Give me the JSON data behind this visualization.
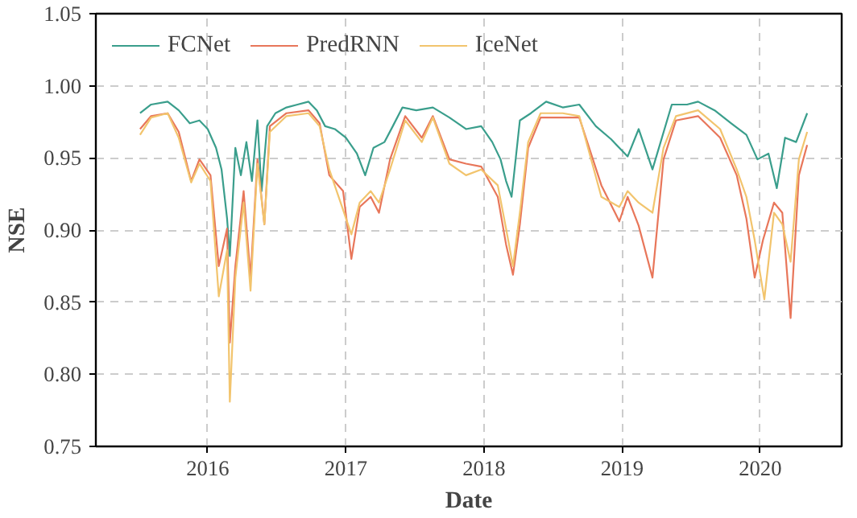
{
  "chart_data": {
    "type": "line",
    "xlabel": "Date",
    "ylabel": "NSE",
    "xlim": [
      2015.69,
      2021.09
    ],
    "ylim": [
      0.75,
      1.05
    ],
    "xticks": [
      {
        "value": 2016.5,
        "label": "2016"
      },
      {
        "value": 2017.5,
        "label": "2017"
      },
      {
        "value": 2018.5,
        "label": "2018"
      },
      {
        "value": 2019.5,
        "label": "2019"
      },
      {
        "value": 2020.5,
        "label": "2020"
      }
    ],
    "yticks": [
      {
        "value": 0.75,
        "label": "0.75"
      },
      {
        "value": 0.8,
        "label": "0.80"
      },
      {
        "value": 0.85,
        "label": "0.85"
      },
      {
        "value": 0.9,
        "label": "0.90"
      },
      {
        "value": 0.95,
        "label": "0.95"
      },
      {
        "value": 1.0,
        "label": "1.00"
      },
      {
        "value": 1.05,
        "label": "1.05"
      }
    ],
    "grid": true,
    "legend": "top left",
    "marker": "none",
    "line_style": "solid",
    "series": [
      {
        "name": "FCNet",
        "color": "#3a9e8c",
        "x": [
          2016.01,
          2016.09,
          2016.21,
          2016.29,
          2016.37,
          2016.44,
          2016.5,
          2016.56,
          2016.6,
          2016.64,
          2016.66,
          2016.7,
          2016.74,
          2016.78,
          2016.82,
          2016.86,
          2016.89,
          2016.93,
          2016.99,
          2017.07,
          2017.15,
          2017.23,
          2017.29,
          2017.35,
          2017.42,
          2017.5,
          2017.58,
          2017.64,
          2017.7,
          2017.78,
          2017.84,
          2017.91,
          2018.01,
          2018.13,
          2018.25,
          2018.37,
          2018.48,
          2018.56,
          2018.62,
          2018.66,
          2018.7,
          2018.76,
          2018.84,
          2018.95,
          2019.07,
          2019.19,
          2019.31,
          2019.42,
          2019.54,
          2019.62,
          2019.72,
          2019.86,
          2019.97,
          2020.05,
          2020.17,
          2020.29,
          2020.4,
          2020.48,
          2020.56,
          2020.62,
          2020.68,
          2020.76,
          2020.84
        ],
        "values": [
          0.981,
          0.987,
          0.989,
          0.983,
          0.974,
          0.976,
          0.97,
          0.957,
          0.942,
          0.908,
          0.882,
          0.957,
          0.938,
          0.961,
          0.934,
          0.976,
          0.927,
          0.972,
          0.981,
          0.985,
          0.987,
          0.989,
          0.983,
          0.972,
          0.97,
          0.964,
          0.953,
          0.938,
          0.957,
          0.961,
          0.972,
          0.985,
          0.983,
          0.985,
          0.978,
          0.97,
          0.972,
          0.961,
          0.949,
          0.934,
          0.923,
          0.976,
          0.981,
          0.989,
          0.985,
          0.987,
          0.972,
          0.963,
          0.951,
          0.97,
          0.942,
          0.987,
          0.987,
          0.989,
          0.983,
          0.974,
          0.966,
          0.949,
          0.953,
          0.929,
          0.964,
          0.961,
          0.981
        ]
      },
      {
        "name": "PredRNN",
        "color": "#e8765a",
        "x": [
          2016.01,
          2016.09,
          2016.21,
          2016.29,
          2016.38,
          2016.44,
          2016.52,
          2016.58,
          2016.64,
          2016.66,
          2016.7,
          2016.76,
          2016.81,
          2016.86,
          2016.91,
          2016.95,
          2017.07,
          2017.23,
          2017.31,
          2017.38,
          2017.48,
          2017.54,
          2017.6,
          2017.68,
          2017.74,
          2017.82,
          2017.93,
          2018.05,
          2018.13,
          2018.25,
          2018.37,
          2018.48,
          2018.6,
          2018.66,
          2018.71,
          2018.76,
          2018.82,
          2018.91,
          2019.07,
          2019.19,
          2019.35,
          2019.48,
          2019.54,
          2019.62,
          2019.72,
          2019.8,
          2019.89,
          2020.05,
          2020.21,
          2020.33,
          2020.4,
          2020.46,
          2020.52,
          2020.6,
          2020.66,
          2020.72,
          2020.78,
          2020.84
        ],
        "values": [
          0.97,
          0.979,
          0.981,
          0.968,
          0.934,
          0.949,
          0.938,
          0.875,
          0.901,
          0.822,
          0.875,
          0.927,
          0.867,
          0.949,
          0.904,
          0.972,
          0.981,
          0.983,
          0.974,
          0.938,
          0.927,
          0.88,
          0.916,
          0.923,
          0.912,
          0.949,
          0.979,
          0.964,
          0.979,
          0.949,
          0.946,
          0.944,
          0.923,
          0.89,
          0.869,
          0.904,
          0.957,
          0.978,
          0.978,
          0.978,
          0.931,
          0.906,
          0.923,
          0.903,
          0.867,
          0.949,
          0.976,
          0.979,
          0.964,
          0.938,
          0.908,
          0.867,
          0.893,
          0.919,
          0.912,
          0.839,
          0.938,
          0.959
        ]
      },
      {
        "name": "IceNet",
        "color": "#f2c46d",
        "x": [
          2016.01,
          2016.09,
          2016.21,
          2016.29,
          2016.38,
          2016.44,
          2016.52,
          2016.58,
          2016.64,
          2016.66,
          2016.7,
          2016.76,
          2016.81,
          2016.86,
          2016.91,
          2016.95,
          2017.07,
          2017.23,
          2017.31,
          2017.38,
          2017.48,
          2017.54,
          2017.6,
          2017.68,
          2017.74,
          2017.82,
          2017.93,
          2018.05,
          2018.13,
          2018.25,
          2018.37,
          2018.48,
          2018.6,
          2018.66,
          2018.71,
          2018.76,
          2018.82,
          2018.91,
          2019.07,
          2019.19,
          2019.35,
          2019.48,
          2019.54,
          2019.62,
          2019.72,
          2019.8,
          2019.89,
          2020.05,
          2020.21,
          2020.33,
          2020.4,
          2020.46,
          2020.53,
          2020.6,
          2020.66,
          2020.72,
          2020.78,
          2020.84
        ],
        "values": [
          0.966,
          0.978,
          0.981,
          0.964,
          0.933,
          0.946,
          0.934,
          0.854,
          0.886,
          0.781,
          0.867,
          0.919,
          0.858,
          0.946,
          0.904,
          0.968,
          0.979,
          0.981,
          0.972,
          0.942,
          0.914,
          0.897,
          0.919,
          0.927,
          0.919,
          0.942,
          0.976,
          0.961,
          0.978,
          0.946,
          0.938,
          0.942,
          0.931,
          0.901,
          0.875,
          0.912,
          0.961,
          0.981,
          0.981,
          0.979,
          0.923,
          0.916,
          0.927,
          0.919,
          0.912,
          0.957,
          0.979,
          0.983,
          0.97,
          0.942,
          0.923,
          0.893,
          0.852,
          0.912,
          0.904,
          0.878,
          0.949,
          0.968
        ]
      }
    ]
  }
}
